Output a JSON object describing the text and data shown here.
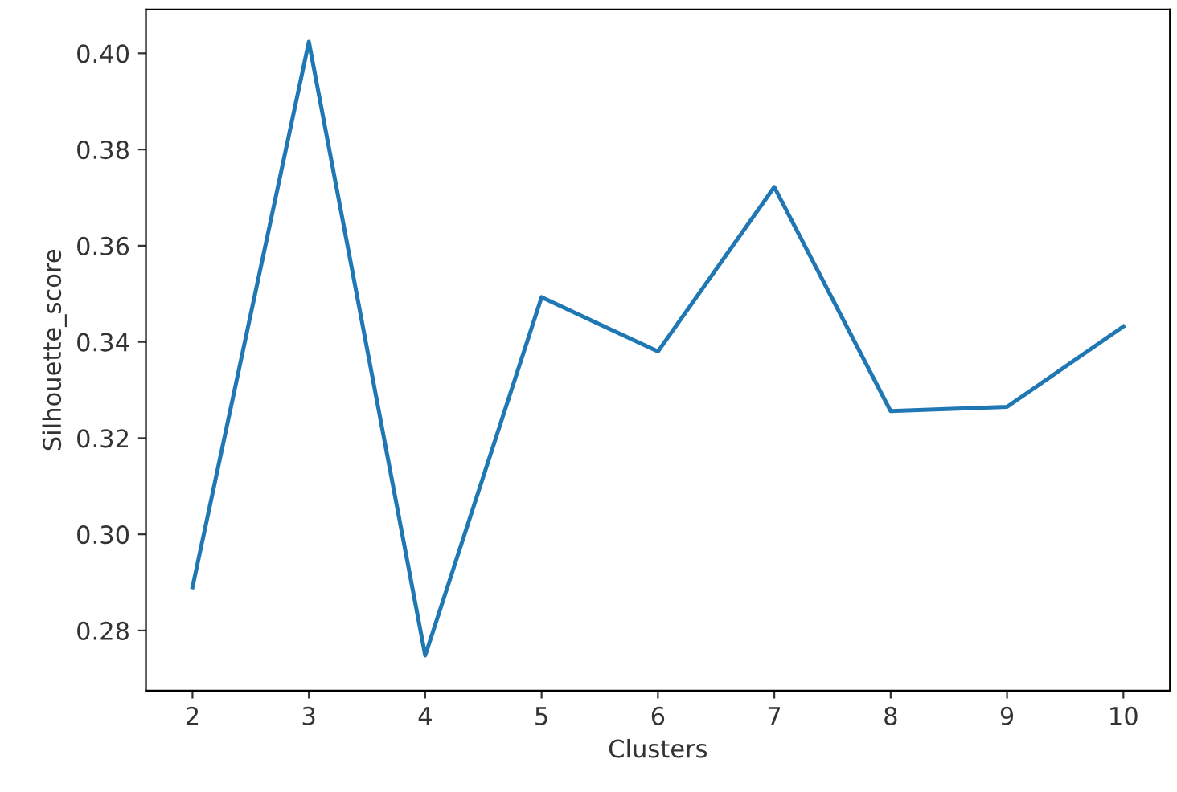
{
  "chart_data": {
    "type": "line",
    "xlabel": "Clusters",
    "ylabel": "Silhouette_score",
    "x": [
      2,
      3,
      4,
      5,
      6,
      7,
      8,
      9,
      10
    ],
    "series": [
      {
        "color": "#1f77b4",
        "values": [
          0.289,
          0.4024,
          0.2748,
          0.3493,
          0.338,
          0.3722,
          0.3256,
          0.3265,
          0.3432
        ]
      }
    ],
    "xlim": [
      1.6,
      10.4
    ],
    "ylim": [
      0.2675,
      0.4091
    ],
    "xticks": [
      2,
      3,
      4,
      5,
      6,
      7,
      8,
      9,
      10
    ],
    "yticks": [
      {
        "value": 0.28,
        "label": "0.28"
      },
      {
        "value": 0.3,
        "label": "0.30"
      },
      {
        "value": 0.32,
        "label": "0.32"
      },
      {
        "value": 0.34,
        "label": "0.34"
      },
      {
        "value": 0.36,
        "label": "0.36"
      },
      {
        "value": 0.38,
        "label": "0.38"
      },
      {
        "value": 0.4,
        "label": "0.40"
      }
    ],
    "grid": false,
    "legend": false
  }
}
